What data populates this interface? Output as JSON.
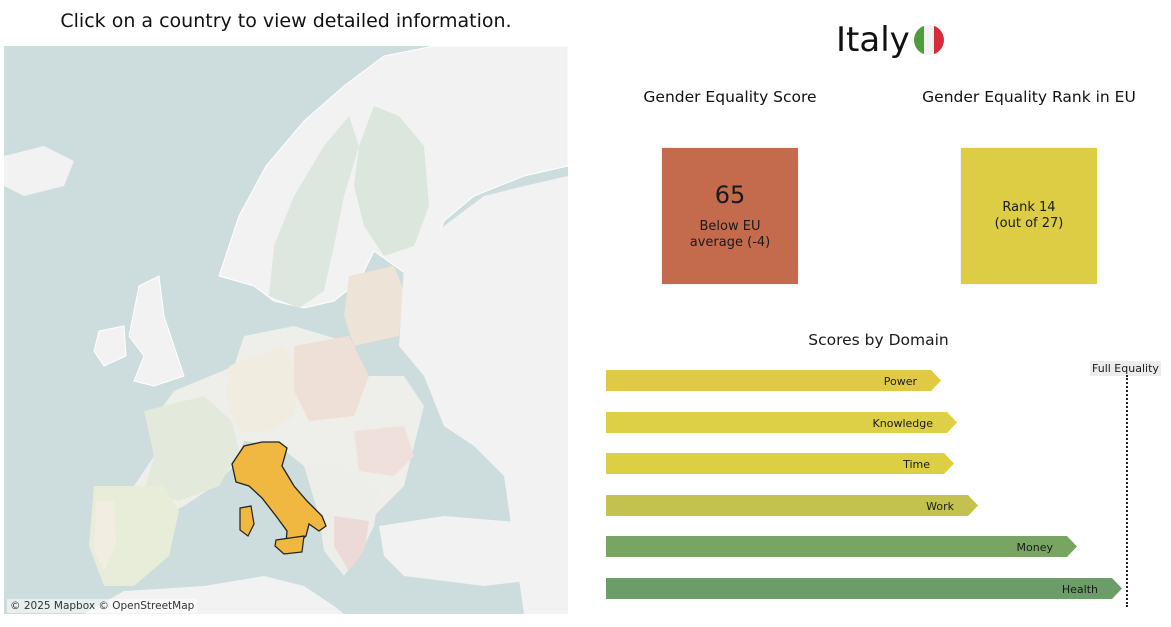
{
  "instruction": "Click on a country to view detailed information.",
  "map": {
    "attribution": "© 2025 Mapbox © OpenStreetMap",
    "selected_country": "Italy",
    "selected_color": "#f0b840"
  },
  "country": {
    "name": "Italy",
    "flag_colors": [
      "#4f9d3a",
      "#f2f2f2",
      "#d52b3a"
    ]
  },
  "score_card": {
    "title": "Gender Equality Score",
    "value": "65",
    "line1": "Below EU",
    "line2": "average (-4)",
    "color": "#c46b4e"
  },
  "rank_card": {
    "title": "Gender Equality Rank in EU",
    "line1": "Rank 14",
    "line2": "(out of 27)",
    "color": "#dccd44"
  },
  "domains": {
    "title": "Scores by Domain",
    "full_equality_label": "Full Equality",
    "max": 100,
    "bars": [
      {
        "label": "Power",
        "value": 64.5,
        "color": "#e0ca45"
      },
      {
        "label": "Knowledge",
        "value": 67.5,
        "color": "#ddcf46"
      },
      {
        "label": "Time",
        "value": 67.0,
        "color": "#dccf44"
      },
      {
        "label": "Work",
        "value": 71.6,
        "color": "#c3c24e"
      },
      {
        "label": "Money",
        "value": 90.6,
        "color": "#79a562"
      },
      {
        "label": "Health",
        "value": 99.2,
        "color": "#6c9c68"
      }
    ]
  }
}
